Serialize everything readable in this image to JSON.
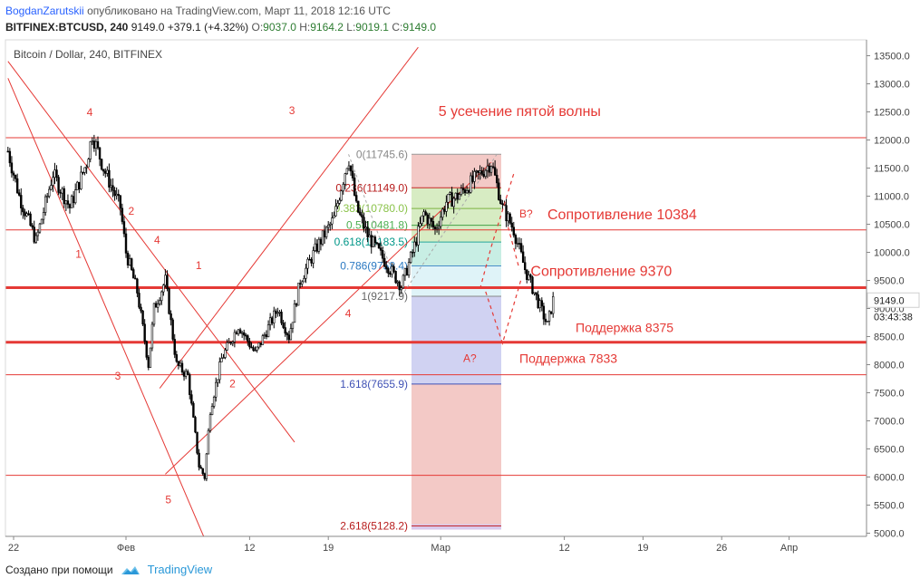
{
  "header": {
    "author": "BogdanZarutskii",
    "published": "опубликовано на TradingView.com, Март 11, 2018 12:16 UTC",
    "symbol": "BITFINEX:BTCUSD, 240",
    "last": "9149.0",
    "change": "+379.1 (+4.32%)",
    "o_label": "O:",
    "o_value": "9037.0",
    "h_label": "H:",
    "h_value": "9164.2",
    "l_label": "L:",
    "l_value": "9019.1",
    "c_label": "C:",
    "c_value": "9149.0"
  },
  "footer": {
    "created_by": "Создано при помощи",
    "brand": "TradingView"
  },
  "colors": {
    "red": "#e53935",
    "candle": "#000000",
    "axis_text": "#444444",
    "fib_top": "#f3c9c6",
    "fib_mid_green": "#d7ecc3",
    "fib_teal": "#c8eee4",
    "fib_blue": "#d0d2f2",
    "blue_line": "#3f51b5"
  },
  "chart_data": {
    "type": "candlestick",
    "title": "Bitcoin / Dollar, 240, BITFINEX",
    "y_axis": {
      "min": 4900,
      "max": 13700,
      "ticks": [
        "13500.0",
        "13000.0",
        "12500.0",
        "12000.0",
        "11500.0",
        "11000.0",
        "10500.0",
        "10000.0",
        "9500.0",
        "9000.0",
        "8500.0",
        "8000.0",
        "7500.0",
        "7000.0",
        "6500.0",
        "6000.0",
        "5500.0",
        "5000.0"
      ],
      "last_price_label": "9149.0",
      "countdown_label": "03:43:38"
    },
    "x_axis": {
      "ticks": [
        {
          "label": "22",
          "day": 0
        },
        {
          "label": "Фев",
          "day": 10
        },
        {
          "label": "12",
          "day": 21
        },
        {
          "label": "19",
          "day": 28
        },
        {
          "label": "Мар",
          "day": 38
        },
        {
          "label": "12",
          "day": 49
        },
        {
          "label": "19",
          "day": 56
        },
        {
          "label": "26",
          "day": 63
        },
        {
          "label": "Апр",
          "day": 69
        }
      ]
    },
    "price_path": [
      [
        -0.5,
        11800
      ],
      [
        0.5,
        11000
      ],
      [
        2,
        10200
      ],
      [
        3.5,
        11400
      ],
      [
        5,
        10800
      ],
      [
        6.5,
        11600
      ],
      [
        7,
        12100
      ],
      [
        8,
        11500
      ],
      [
        9.5,
        10800
      ],
      [
        10,
        10000
      ],
      [
        11,
        9300
      ],
      [
        12,
        8000
      ],
      [
        12.5,
        9000
      ],
      [
        13.5,
        9500
      ],
      [
        14.5,
        8000
      ],
      [
        15.5,
        7800
      ],
      [
        16.5,
        6200
      ],
      [
        17,
        6000
      ],
      [
        17.5,
        7200
      ],
      [
        18.5,
        8100
      ],
      [
        20,
        8700
      ],
      [
        21.5,
        8200
      ],
      [
        22.5,
        8600
      ],
      [
        23.5,
        9000
      ],
      [
        24.5,
        8500
      ],
      [
        25.5,
        9500
      ],
      [
        27,
        10100
      ],
      [
        28.5,
        10600
      ],
      [
        29.8,
        11700
      ],
      [
        30.5,
        10800
      ],
      [
        31.5,
        10300
      ],
      [
        32.5,
        10000
      ],
      [
        33.5,
        9700
      ],
      [
        34.5,
        9400
      ],
      [
        35.5,
        10000
      ],
      [
        36.5,
        10700
      ],
      [
        37.5,
        10400
      ],
      [
        38.5,
        10900
      ],
      [
        39.5,
        11000
      ],
      [
        40.5,
        11200
      ],
      [
        41.5,
        11400
      ],
      [
        42.5,
        11600
      ],
      [
        43,
        11200
      ],
      [
        43.5,
        10800
      ],
      [
        44.5,
        10400
      ],
      [
        45.5,
        9700
      ],
      [
        46.5,
        9200
      ],
      [
        47.5,
        8700
      ],
      [
        48,
        9150
      ]
    ],
    "horizontal_lines": [
      {
        "price": 12040,
        "weight": "thin"
      },
      {
        "price": 10400,
        "weight": "thin"
      },
      {
        "price": 9370,
        "weight": "thick"
      },
      {
        "price": 8400,
        "weight": "thick"
      },
      {
        "price": 7820,
        "weight": "thin"
      },
      {
        "price": 6030,
        "weight": "thin"
      }
    ],
    "fibonacci": [
      {
        "label": "0(11745.6)",
        "price": 11745.6
      },
      {
        "label": "0.236(11149.0)",
        "price": 11149.0
      },
      {
        "label": "0.382(10780.0)",
        "price": 10780.0
      },
      {
        "label": "0.5(10481.8)",
        "price": 10481.8
      },
      {
        "label": "0.618(10183.5)",
        "price": 10183.5
      },
      {
        "label": "0.786(9758.4)",
        "price": 9758.4
      },
      {
        "label": "1(9217.9)",
        "price": 9217.9
      },
      {
        "label": "1.618(7655.9)",
        "price": 7655.9
      },
      {
        "label": "2.618(5128.2)",
        "price": 5128.2
      }
    ],
    "annotations": [
      {
        "text": "5 усечение пятой волны",
        "day": 37.8,
        "price": 12430,
        "size": "large"
      },
      {
        "text": "Сопротивление 10384",
        "day": 47.5,
        "price": 10590,
        "size": "large"
      },
      {
        "text": "Сопротивление 9370",
        "day": 46,
        "price": 9580,
        "size": "large"
      },
      {
        "text": "Поддержка 8375",
        "day": 50,
        "price": 8580,
        "size": "small"
      },
      {
        "text": "Поддержка 7833",
        "day": 45,
        "price": 8030,
        "size": "small"
      },
      {
        "text": "B?",
        "day": 45,
        "price": 10620,
        "size": "wave"
      },
      {
        "text": "A?",
        "day": 40,
        "price": 8050,
        "size": "wave"
      },
      {
        "text": "4",
        "day": 6.5,
        "price": 12430,
        "size": "wave"
      },
      {
        "text": "3",
        "day": 24.5,
        "price": 12460,
        "size": "wave"
      },
      {
        "text": "2",
        "day": 10.2,
        "price": 10670,
        "size": "wave"
      },
      {
        "text": "4",
        "day": 12.5,
        "price": 10150,
        "size": "wave"
      },
      {
        "text": "1",
        "day": 5.5,
        "price": 9900,
        "size": "wave"
      },
      {
        "text": "1",
        "day": 16.2,
        "price": 9700,
        "size": "wave"
      },
      {
        "text": "3",
        "day": 9,
        "price": 7730,
        "size": "wave"
      },
      {
        "text": "2",
        "day": 19.2,
        "price": 7600,
        "size": "wave"
      },
      {
        "text": "4",
        "day": 29.5,
        "price": 8850,
        "size": "wave"
      },
      {
        "text": "5",
        "day": 13.5,
        "price": 5530,
        "size": "wave"
      }
    ],
    "trend_lines": [
      {
        "from": [
          -0.5,
          13100
        ],
        "to": [
          17,
          4900
        ]
      },
      {
        "from": [
          -0.5,
          13400
        ],
        "to": [
          25,
          6620
        ]
      },
      {
        "from": [
          13,
          7580
        ],
        "to": [
          36,
          13650
        ]
      },
      {
        "from": [
          13.5,
          6050
        ],
        "to": [
          42.5,
          11600
        ]
      }
    ],
    "projection": [
      [
        41.5,
        9350
      ],
      [
        42.5,
        10100
      ],
      [
        44.5,
        11400
      ]
    ],
    "projection2": [
      [
        42,
        9300
      ],
      [
        43.5,
        8380
      ],
      [
        45.2,
        9550
      ]
    ],
    "projection3": [
      [
        44,
        10450
      ],
      [
        45,
        9700
      ]
    ]
  }
}
